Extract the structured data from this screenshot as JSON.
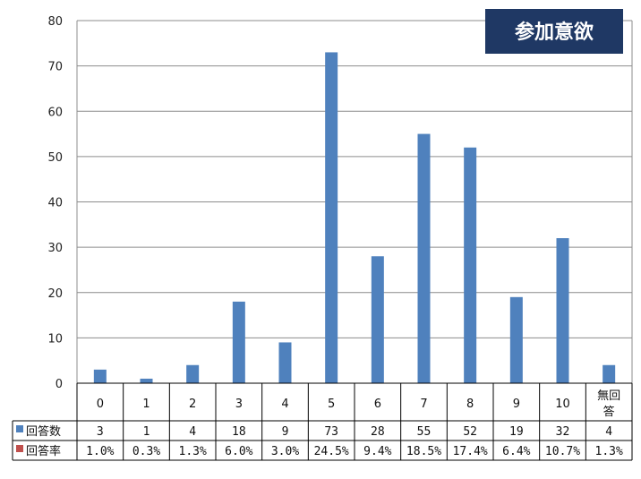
{
  "badge": {
    "label": "参加意欲",
    "color": "#1F3864"
  },
  "colors": {
    "count_series": "#4F81BD",
    "rate_series": "#C0504D"
  },
  "chart_data": {
    "type": "bar",
    "title": "参加意欲",
    "xlabel": "",
    "ylabel": "",
    "ylim": [
      0,
      80
    ],
    "yticks": [
      0,
      10,
      20,
      30,
      40,
      50,
      60,
      70,
      80
    ],
    "categories": [
      "0",
      "1",
      "2",
      "3",
      "4",
      "5",
      "6",
      "7",
      "8",
      "9",
      "10",
      "無回答"
    ],
    "grid": true,
    "series": [
      {
        "name": "回答数",
        "values": [
          3,
          1,
          4,
          18,
          9,
          73,
          28,
          55,
          52,
          19,
          32,
          4
        ],
        "labels": [
          "3",
          "1",
          "4",
          "18",
          "9",
          "73",
          "28",
          "55",
          "52",
          "19",
          "32",
          "4"
        ]
      },
      {
        "name": "回答率",
        "labels": [
          "1.0%",
          "0.3%",
          "1.3%",
          "6.0%",
          "3.0%",
          "24.5%",
          "9.4%",
          "18.5%",
          "17.4%",
          "6.4%",
          "10.7%",
          "1.3%"
        ]
      }
    ]
  }
}
